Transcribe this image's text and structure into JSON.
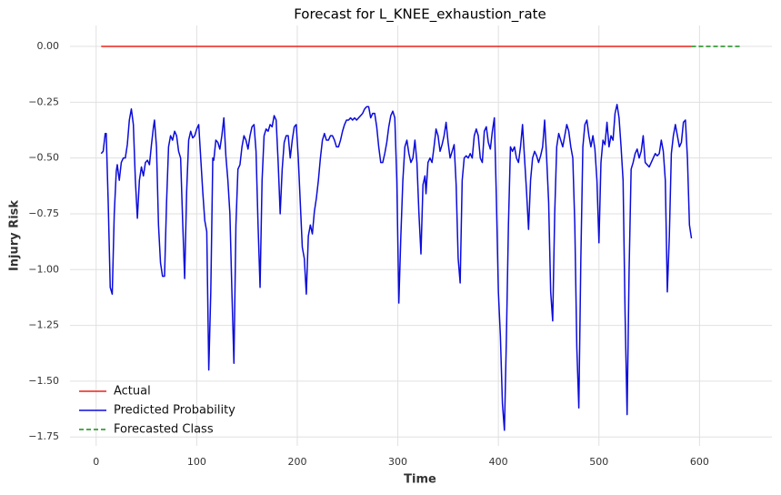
{
  "chart_data": {
    "type": "line",
    "title": "Forecast for L_KNEE_exhaustion_rate",
    "x_label": "Time",
    "y_label": "Injury Risk",
    "xlim": [
      -26,
      672
    ],
    "ylim": [
      -1.79,
      0.094
    ],
    "xticks": [
      0,
      100,
      200,
      300,
      400,
      500,
      600
    ],
    "yticks": [
      {
        "value": 0,
        "label": "0.00"
      },
      {
        "value": -0.25,
        "label": "−0.25"
      },
      {
        "value": -0.5,
        "label": "−0.50"
      },
      {
        "value": -0.75,
        "label": "−0.75"
      },
      {
        "value": -1,
        "label": "−1.00"
      },
      {
        "value": -1.25,
        "label": "−1.25"
      },
      {
        "value": -1.5,
        "label": "−1.50"
      },
      {
        "value": -1.75,
        "label": "−1.75"
      }
    ],
    "grid": true,
    "legend": "lower left",
    "series": [
      {
        "name": "Actual",
        "color": "#e8231b",
        "linestyle": "solid",
        "x": [
          5,
          100,
          200,
          300,
          400,
          500,
          592
        ],
        "values": [
          0,
          0,
          0,
          0,
          0,
          0,
          0
        ]
      },
      {
        "name": "Predicted Probability",
        "color": "#0b0bdb",
        "linestyle": "solid",
        "x": [
          5,
          7,
          9,
          10,
          12,
          14,
          16,
          18,
          20,
          21,
          23,
          25,
          27,
          29,
          31,
          33,
          35,
          37,
          39,
          41,
          43,
          45,
          47,
          49,
          51,
          53,
          55,
          57,
          58,
          60,
          62,
          64,
          66,
          68,
          70,
          72,
          74,
          76,
          78,
          80,
          82,
          84,
          86,
          88,
          90,
          92,
          94,
          96,
          98,
          100,
          102,
          104,
          106,
          108,
          110,
          112,
          114,
          116,
          117,
          119,
          121,
          123,
          125,
          127,
          129,
          131,
          133,
          135,
          137,
          139,
          141,
          143,
          145,
          147,
          149,
          151,
          153,
          155,
          157,
          159,
          161,
          163,
          165,
          167,
          169,
          171,
          173,
          175,
          177,
          179,
          181,
          183,
          185,
          187,
          189,
          191,
          193,
          195,
          197,
          199,
          201,
          203,
          205,
          207,
          209,
          211,
          213,
          215,
          217,
          219,
          221,
          223,
          225,
          227,
          229,
          231,
          233,
          235,
          237,
          239,
          241,
          243,
          245,
          247,
          249,
          251,
          253,
          255,
          257,
          259,
          261,
          263,
          265,
          267,
          269,
          271,
          273,
          275,
          277,
          279,
          281,
          283,
          285,
          287,
          289,
          291,
          293,
          295,
          297,
          299,
          301,
          303,
          305,
          307,
          309,
          311,
          313,
          315,
          317,
          319,
          321,
          323,
          325,
          327,
          328,
          330,
          332,
          334,
          336,
          338,
          340,
          342,
          344,
          346,
          348,
          350,
          352,
          354,
          356,
          358,
          360,
          362,
          364,
          366,
          368,
          370,
          372,
          374,
          376,
          378,
          380,
          382,
          384,
          386,
          388,
          390,
          392,
          394,
          396,
          398,
          400,
          402,
          404,
          406,
          408,
          410,
          412,
          414,
          416,
          418,
          420,
          422,
          424,
          426,
          428,
          430,
          432,
          434,
          436,
          438,
          440,
          442,
          444,
          446,
          448,
          450,
          452,
          454,
          456,
          458,
          460,
          462,
          464,
          466,
          468,
          470,
          472,
          474,
          476,
          478,
          480,
          482,
          484,
          486,
          488,
          490,
          492,
          494,
          496,
          498,
          500,
          502,
          504,
          506,
          508,
          510,
          512,
          514,
          516,
          518,
          520,
          522,
          524,
          526,
          528,
          530,
          532,
          534,
          536,
          538,
          540,
          542,
          544,
          546,
          548,
          550,
          552,
          554,
          556,
          558,
          560,
          562,
          564,
          566,
          568,
          570,
          572,
          574,
          576,
          578,
          580,
          582,
          584,
          586,
          588,
          590,
          592
        ],
        "values": [
          -0.48,
          -0.47,
          -0.39,
          -0.39,
          -0.7,
          -1.08,
          -1.11,
          -0.75,
          -0.56,
          -0.53,
          -0.6,
          -0.52,
          -0.5,
          -0.5,
          -0.44,
          -0.33,
          -0.28,
          -0.35,
          -0.6,
          -0.77,
          -0.6,
          -0.54,
          -0.58,
          -0.52,
          -0.51,
          -0.53,
          -0.44,
          -0.36,
          -0.33,
          -0.45,
          -0.8,
          -0.97,
          -1.03,
          -1.03,
          -0.7,
          -0.45,
          -0.4,
          -0.42,
          -0.38,
          -0.4,
          -0.47,
          -0.5,
          -0.78,
          -1.04,
          -0.65,
          -0.42,
          -0.38,
          -0.41,
          -0.4,
          -0.37,
          -0.35,
          -0.5,
          -0.65,
          -0.78,
          -0.83,
          -1.45,
          -1.1,
          -0.5,
          -0.51,
          -0.42,
          -0.43,
          -0.46,
          -0.4,
          -0.32,
          -0.49,
          -0.6,
          -0.75,
          -1.1,
          -1.42,
          -0.8,
          -0.55,
          -0.53,
          -0.45,
          -0.4,
          -0.42,
          -0.46,
          -0.4,
          -0.36,
          -0.35,
          -0.47,
          -0.8,
          -1.08,
          -0.6,
          -0.4,
          -0.37,
          -0.38,
          -0.35,
          -0.36,
          -0.31,
          -0.33,
          -0.52,
          -0.75,
          -0.55,
          -0.43,
          -0.4,
          -0.4,
          -0.5,
          -0.42,
          -0.36,
          -0.35,
          -0.5,
          -0.7,
          -0.9,
          -0.95,
          -1.11,
          -0.85,
          -0.8,
          -0.84,
          -0.74,
          -0.68,
          -0.6,
          -0.5,
          -0.42,
          -0.39,
          -0.42,
          -0.42,
          -0.4,
          -0.4,
          -0.42,
          -0.45,
          -0.45,
          -0.42,
          -0.38,
          -0.35,
          -0.33,
          -0.33,
          -0.32,
          -0.33,
          -0.32,
          -0.33,
          -0.32,
          -0.31,
          -0.3,
          -0.28,
          -0.27,
          -0.27,
          -0.32,
          -0.3,
          -0.3,
          -0.36,
          -0.45,
          -0.52,
          -0.52,
          -0.48,
          -0.43,
          -0.36,
          -0.31,
          -0.29,
          -0.32,
          -0.6,
          -1.15,
          -0.85,
          -0.6,
          -0.45,
          -0.42,
          -0.48,
          -0.52,
          -0.5,
          -0.42,
          -0.52,
          -0.75,
          -0.93,
          -0.62,
          -0.58,
          -0.66,
          -0.52,
          -0.5,
          -0.52,
          -0.45,
          -0.37,
          -0.4,
          -0.47,
          -0.44,
          -0.4,
          -0.34,
          -0.43,
          -0.5,
          -0.47,
          -0.44,
          -0.62,
          -0.95,
          -1.06,
          -0.6,
          -0.5,
          -0.49,
          -0.5,
          -0.48,
          -0.5,
          -0.4,
          -0.37,
          -0.4,
          -0.5,
          -0.52,
          -0.38,
          -0.36,
          -0.43,
          -0.46,
          -0.38,
          -0.32,
          -0.68,
          -1.1,
          -1.3,
          -1.6,
          -1.72,
          -1.3,
          -0.8,
          -0.45,
          -0.47,
          -0.45,
          -0.5,
          -0.52,
          -0.45,
          -0.35,
          -0.5,
          -0.65,
          -0.82,
          -0.6,
          -0.5,
          -0.47,
          -0.49,
          -0.52,
          -0.49,
          -0.45,
          -0.33,
          -0.5,
          -0.7,
          -1.1,
          -1.23,
          -0.75,
          -0.45,
          -0.39,
          -0.42,
          -0.45,
          -0.4,
          -0.35,
          -0.38,
          -0.45,
          -0.5,
          -0.8,
          -1.35,
          -1.62,
          -0.95,
          -0.45,
          -0.35,
          -0.33,
          -0.4,
          -0.45,
          -0.4,
          -0.46,
          -0.6,
          -0.88,
          -0.52,
          -0.42,
          -0.44,
          -0.34,
          -0.45,
          -0.4,
          -0.42,
          -0.3,
          -0.26,
          -0.32,
          -0.45,
          -0.6,
          -1.2,
          -1.65,
          -1.0,
          -0.55,
          -0.52,
          -0.48,
          -0.46,
          -0.5,
          -0.47,
          -0.4,
          -0.52,
          -0.53,
          -0.54,
          -0.52,
          -0.5,
          -0.48,
          -0.49,
          -0.48,
          -0.42,
          -0.47,
          -0.6,
          -1.1,
          -0.85,
          -0.48,
          -0.4,
          -0.35,
          -0.4,
          -0.45,
          -0.43,
          -0.34,
          -0.33,
          -0.5,
          -0.8,
          -0.86
        ]
      },
      {
        "name": "Forecasted Class",
        "color": "#1a8a1a",
        "linestyle": "dashed",
        "x": [
          592,
          640
        ],
        "values": [
          0,
          0
        ]
      }
    ]
  }
}
